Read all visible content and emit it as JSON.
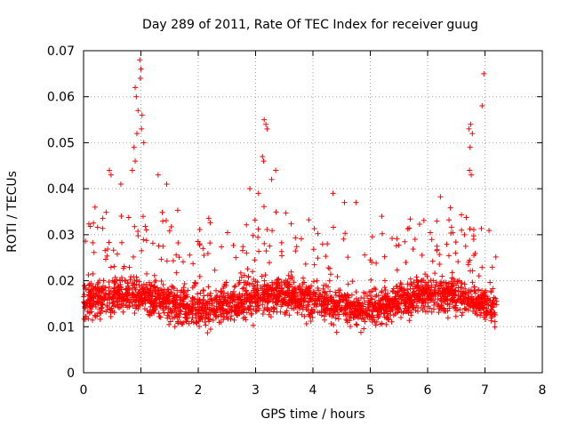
{
  "chart_data": {
    "type": "scatter",
    "title": "Day 289 of 2011, Rate Of TEC Index for receiver guug",
    "xlabel": "GPS time / hours",
    "ylabel": "ROTI / TECUs",
    "xlim": [
      0,
      8
    ],
    "ylim": [
      0,
      0.07
    ],
    "grid": true,
    "marker": "+",
    "xticks": [
      0,
      1,
      2,
      3,
      4,
      5,
      6,
      7,
      8
    ],
    "yticks": [
      0,
      0.01,
      0.02,
      0.03,
      0.04,
      0.05,
      0.06,
      0.07
    ],
    "ytick_labels": [
      "0",
      "0.01",
      "0.02",
      "0.03",
      "0.04",
      "0.05",
      "0.06",
      "0.07"
    ],
    "series": [
      {
        "name": "ROTI",
        "color": "#ff0000",
        "x_range_hours": [
          0,
          7.2
        ],
        "typical_range": [
          0.008,
          0.025
        ],
        "outliers": [
          {
            "x": 0.98,
            "y": 0.068
          },
          {
            "x": 1.0,
            "y": 0.066
          },
          {
            "x": 0.99,
            "y": 0.064
          },
          {
            "x": 0.9,
            "y": 0.062
          },
          {
            "x": 0.92,
            "y": 0.06
          },
          {
            "x": 0.95,
            "y": 0.057
          },
          {
            "x": 1.02,
            "y": 0.056
          },
          {
            "x": 0.93,
            "y": 0.052
          },
          {
            "x": 1.01,
            "y": 0.053
          },
          {
            "x": 1.05,
            "y": 0.05
          },
          {
            "x": 0.88,
            "y": 0.049
          },
          {
            "x": 0.9,
            "y": 0.046
          },
          {
            "x": 0.85,
            "y": 0.044
          },
          {
            "x": 3.15,
            "y": 0.055
          },
          {
            "x": 3.18,
            "y": 0.054
          },
          {
            "x": 3.2,
            "y": 0.053
          },
          {
            "x": 3.12,
            "y": 0.047
          },
          {
            "x": 3.14,
            "y": 0.046
          },
          {
            "x": 3.35,
            "y": 0.044
          },
          {
            "x": 3.28,
            "y": 0.042
          },
          {
            "x": 6.98,
            "y": 0.065
          },
          {
            "x": 6.95,
            "y": 0.058
          },
          {
            "x": 6.75,
            "y": 0.054
          },
          {
            "x": 6.72,
            "y": 0.053
          },
          {
            "x": 6.78,
            "y": 0.052
          },
          {
            "x": 6.74,
            "y": 0.049
          },
          {
            "x": 6.73,
            "y": 0.044
          },
          {
            "x": 6.76,
            "y": 0.043
          },
          {
            "x": 0.45,
            "y": 0.044
          },
          {
            "x": 0.48,
            "y": 0.043
          },
          {
            "x": 1.3,
            "y": 0.043
          },
          {
            "x": 1.45,
            "y": 0.041
          },
          {
            "x": 4.35,
            "y": 0.039
          },
          {
            "x": 4.55,
            "y": 0.037
          },
          {
            "x": 4.75,
            "y": 0.037
          },
          {
            "x": 5.2,
            "y": 0.034
          },
          {
            "x": 0.2,
            "y": 0.036
          },
          {
            "x": 0.65,
            "y": 0.041
          },
          {
            "x": 2.9,
            "y": 0.04
          },
          {
            "x": 3.05,
            "y": 0.039
          }
        ]
      }
    ]
  }
}
